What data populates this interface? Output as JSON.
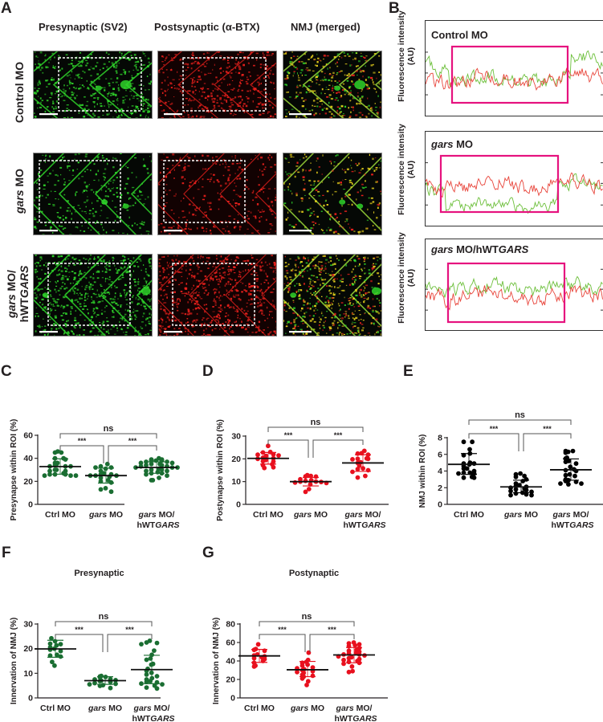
{
  "figure": {
    "panel_letters": {
      "A": "A",
      "B": "B",
      "C": "C",
      "D": "D",
      "E": "E",
      "F": "F",
      "G": "G"
    },
    "panel_a": {
      "column_titles": [
        "Presynaptic (SV2)",
        "Postsynaptic (α-BTX)",
        "NMJ (merged)"
      ],
      "rows": [
        {
          "label_plain": "Control MO",
          "label_italic": "",
          "label_line2": ""
        },
        {
          "label_plain": " MO",
          "label_italic": "gars",
          "label_line2": ""
        },
        {
          "label_plain": " MO/",
          "label_italic": "gars",
          "label_line2_plain": "hWT",
          "label_line2_italic": "GARS"
        }
      ],
      "colors": {
        "presynaptic": "#2fd22a",
        "postsynaptic": "#e8201c",
        "merged_overlap": "#e8d21c",
        "roi_box": "#ffffff"
      }
    },
    "panel_b": {
      "ylabel_line1": "Fluorescence intensity",
      "ylabel_line2": "(AU)",
      "profiles": [
        {
          "title_italic": "",
          "title_plain": "Control MO",
          "title_italic2": ""
        },
        {
          "title_italic": "gars",
          "title_plain": " MO",
          "title_italic2": ""
        },
        {
          "title_italic": "gars",
          "title_plain": " MO/hWT",
          "title_italic2": "GARS"
        }
      ],
      "colors": {
        "green_trace": "#6cbf3a",
        "red_trace": "#e8443a",
        "roi_box": "#e6127e"
      }
    }
  },
  "chart_data": [
    {
      "id": "C",
      "type": "scatter",
      "title": "",
      "ylabel": "Presynapse within ROI (%)",
      "ylim": [
        0,
        60
      ],
      "yticks": [
        0,
        20,
        40,
        60
      ],
      "color": "#1a6e32",
      "categories": [
        {
          "plain": "Ctrl MO",
          "italic": "",
          "line2_plain": "",
          "line2_italic": ""
        },
        {
          "italic": "gars",
          "plain": " MO",
          "line2_plain": "",
          "line2_italic": ""
        },
        {
          "italic": "gars",
          "plain": " MO/",
          "line2_plain": "hWT",
          "line2_italic": "GARS"
        }
      ],
      "groups": [
        {
          "mean": 32.8,
          "sd_low": 26.2,
          "sd_high": 39.6,
          "points": [
            46,
            45,
            45,
            40,
            40,
            39,
            36,
            36,
            35,
            34,
            33,
            33,
            33,
            30,
            30,
            29,
            29,
            27,
            26,
            26,
            26,
            25,
            25,
            25
          ]
        },
        {
          "mean": 25.0,
          "sd_low": 18.5,
          "sd_high": 31.5,
          "points": [
            35,
            33,
            32,
            32,
            31,
            29,
            27,
            26,
            26,
            25,
            25,
            25,
            24,
            23,
            21,
            20,
            19,
            14,
            13,
            11
          ]
        },
        {
          "mean": 32.0,
          "sd_low": 27.0,
          "sd_high": 37.0,
          "points": [
            40,
            39,
            39,
            38,
            38,
            38,
            37,
            37,
            36,
            36,
            35,
            35,
            34,
            34,
            33,
            33,
            32,
            32,
            32,
            31,
            30,
            30,
            29,
            29,
            28,
            27,
            27,
            26,
            25,
            23,
            21,
            21
          ]
        }
      ],
      "significance": [
        {
          "label": "ns",
          "from": 0,
          "to": 2,
          "level": "top"
        },
        {
          "label": "***",
          "from": 0,
          "to": 1,
          "level": "low"
        },
        {
          "label": "***",
          "from": 1,
          "to": 2,
          "level": "low"
        }
      ]
    },
    {
      "id": "D",
      "type": "scatter",
      "title": "",
      "ylabel": "Postynapse within ROI (%)",
      "ylim": [
        0,
        30
      ],
      "yticks": [
        0,
        10,
        20,
        30
      ],
      "color": "#e8101e",
      "categories": [
        {
          "plain": "Ctrl MO",
          "italic": "",
          "line2_plain": "",
          "line2_italic": ""
        },
        {
          "italic": "gars",
          "plain": " MO",
          "line2_plain": "",
          "line2_italic": ""
        },
        {
          "italic": "gars",
          "plain": " MO/",
          "line2_plain": "hWT",
          "line2_italic": "GARS"
        }
      ],
      "groups": [
        {
          "mean": 20.2,
          "sd_low": 17.7,
          "sd_high": 22.8,
          "points": [
            25.7,
            23.0,
            22.8,
            22.0,
            21.8,
            21.5,
            21.3,
            20.5,
            20.3,
            20.0,
            19.5,
            19.0,
            18.8,
            17.6,
            17.2,
            16.3,
            16.0
          ]
        },
        {
          "mean": 10.0,
          "sd_low": 8.1,
          "sd_high": 11.8,
          "points": [
            12.8,
            12.5,
            12.3,
            12.2,
            11.0,
            10.6,
            10.3,
            10.0,
            10.0,
            9.8,
            9.6,
            9.4,
            8.8,
            6.7,
            5.5
          ]
        },
        {
          "mean": 18.2,
          "sd_low": 14.5,
          "sd_high": 21.8,
          "points": [
            23.5,
            22.5,
            22.3,
            21.8,
            20.2,
            20.0,
            20.0,
            19.8,
            18.5,
            18.2,
            17.0,
            15.8,
            15.5,
            15.0,
            14.3,
            12.5,
            11.8
          ]
        }
      ],
      "significance": [
        {
          "label": "ns",
          "from": 0,
          "to": 2,
          "level": "top"
        },
        {
          "label": "***",
          "from": 0,
          "to": 1,
          "level": "low"
        },
        {
          "label": "***",
          "from": 1,
          "to": 2,
          "level": "low"
        }
      ]
    },
    {
      "id": "E",
      "type": "scatter",
      "title": "",
      "ylabel": "NMJ within ROI (%)",
      "ylim": [
        0,
        8
      ],
      "yticks": [
        0,
        2,
        4,
        6,
        8
      ],
      "color": "#000000",
      "categories": [
        {
          "plain": "Ctrl MO",
          "italic": "",
          "line2_plain": "",
          "line2_italic": ""
        },
        {
          "italic": "gars",
          "plain": " MO",
          "line2_plain": "",
          "line2_italic": ""
        },
        {
          "italic": "gars",
          "plain": " MO/",
          "line2_plain": "hWT",
          "line2_italic": "GARS"
        }
      ],
      "groups": [
        {
          "mean": 4.8,
          "sd_low": 3.6,
          "sd_high": 6.1,
          "points": [
            7.5,
            7.5,
            6.6,
            6.1,
            5.9,
            5.0,
            4.9,
            4.9,
            4.8,
            4.6,
            4.3,
            4.3,
            4.0,
            3.8,
            3.8,
            3.7,
            3.7,
            3.3,
            3.2,
            3.2
          ]
        },
        {
          "mean": 2.1,
          "sd_low": 1.4,
          "sd_high": 2.9,
          "points": [
            3.7,
            3.6,
            3.4,
            3.3,
            3.0,
            2.8,
            2.5,
            2.3,
            2.2,
            2.1,
            2.0,
            1.9,
            1.8,
            1.7,
            1.6,
            1.5,
            1.4,
            1.3,
            1.2,
            1.1,
            1.1
          ]
        },
        {
          "mean": 4.15,
          "sd_low": 2.9,
          "sd_high": 5.45,
          "points": [
            6.4,
            6.4,
            6.3,
            6.2,
            5.6,
            5.5,
            5.2,
            5.1,
            4.9,
            4.5,
            4.2,
            4.1,
            4.0,
            3.6,
            3.5,
            3.4,
            3.0,
            2.9,
            2.8,
            2.7,
            2.5,
            2.5,
            2.4
          ]
        }
      ],
      "significance": [
        {
          "label": "ns",
          "from": 0,
          "to": 2,
          "level": "top"
        },
        {
          "label": "***",
          "from": 0,
          "to": 1,
          "level": "low"
        },
        {
          "label": "***",
          "from": 1,
          "to": 2,
          "level": "low"
        }
      ]
    },
    {
      "id": "F",
      "type": "scatter",
      "title": "Presynaptic",
      "ylabel": "Innervation of NMJ (%)",
      "ylim": [
        0,
        30
      ],
      "yticks": [
        0,
        10,
        20,
        30
      ],
      "color": "#1a6e32",
      "categories": [
        {
          "plain": "Ctrl MO",
          "italic": "",
          "line2_plain": "",
          "line2_italic": ""
        },
        {
          "italic": "gars",
          "plain": " MO",
          "line2_plain": "",
          "line2_italic": ""
        },
        {
          "italic": "gars",
          "plain": " MO/",
          "line2_plain": "hWT",
          "line2_italic": "GARS"
        }
      ],
      "groups": [
        {
          "mean": 19.9,
          "sd_low": 16.5,
          "sd_high": 23.4,
          "points": [
            24.2,
            23.0,
            22.0,
            21.8,
            21.3,
            20.5,
            20.0,
            19.6,
            19.0,
            17.5,
            17.2,
            16.8,
            14.6,
            13.1
          ]
        },
        {
          "mean": 7.0,
          "sd_low": 5.5,
          "sd_high": 8.6,
          "points": [
            8.9,
            8.7,
            8.5,
            8.3,
            7.6,
            7.5,
            7.2,
            7.0,
            6.8,
            6.5,
            6.0,
            5.7,
            5.5,
            5.2,
            4.9,
            4.0
          ]
        },
        {
          "mean": 11.5,
          "sd_low": 5.8,
          "sd_high": 17.3,
          "points": [
            23.2,
            22.5,
            22.3,
            21.8,
            19.2,
            17.5,
            16.0,
            15.5,
            13.8,
            13.5,
            11.8,
            11.0,
            10.2,
            9.5,
            8.8,
            8.0,
            7.5,
            6.8,
            6.5,
            6.3,
            5.8,
            5.5,
            5.0,
            4.2,
            3.8
          ]
        }
      ],
      "significance": [
        {
          "label": "ns",
          "from": 0,
          "to": 2,
          "level": "top"
        },
        {
          "label": "***",
          "from": 0,
          "to": 1,
          "level": "low"
        },
        {
          "label": "***",
          "from": 1,
          "to": 2,
          "level": "low"
        }
      ]
    },
    {
      "id": "G",
      "type": "scatter",
      "title": "Postynaptic",
      "ylabel": "Innervation of NMJ (%)",
      "ylim": [
        0,
        80
      ],
      "yticks": [
        0,
        20,
        40,
        60,
        80
      ],
      "color": "#e8101e",
      "categories": [
        {
          "plain": "Ctrl MO",
          "italic": "",
          "line2_plain": "",
          "line2_italic": ""
        },
        {
          "italic": "gars",
          "plain": " MO",
          "line2_plain": "",
          "line2_italic": ""
        },
        {
          "italic": "gars",
          "plain": " MO/",
          "line2_plain": "hWT",
          "line2_italic": "GARS"
        }
      ],
      "groups": [
        {
          "mean": 45.5,
          "sd_low": 38.5,
          "sd_high": 52.5,
          "points": [
            58,
            53,
            52,
            51,
            47,
            46,
            45,
            44,
            43,
            42,
            40,
            38,
            35,
            34
          ]
        },
        {
          "mean": 30.5,
          "sd_low": 23.0,
          "sd_high": 39.5,
          "points": [
            49,
            41,
            39,
            38,
            36,
            35,
            33,
            32,
            31,
            30,
            29,
            28,
            27,
            25,
            24,
            23,
            21,
            18,
            14
          ]
        },
        {
          "mean": 46.5,
          "sd_low": 38.0,
          "sd_high": 54.5,
          "points": [
            60,
            59,
            58,
            57,
            56,
            54,
            52,
            51,
            50,
            49,
            48,
            47,
            47,
            46,
            45,
            44,
            43,
            42,
            41,
            40,
            39,
            38,
            37,
            34,
            29,
            28
          ]
        }
      ],
      "significance": [
        {
          "label": "ns",
          "from": 0,
          "to": 2,
          "level": "top"
        },
        {
          "label": "***",
          "from": 0,
          "to": 1,
          "level": "low"
        },
        {
          "label": "***",
          "from": 1,
          "to": 2,
          "level": "low"
        }
      ]
    }
  ]
}
